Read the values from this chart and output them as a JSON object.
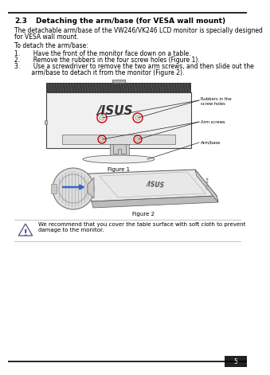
{
  "page_bg": "#ffffff",
  "border_color": "#000000",
  "page_num": "5",
  "header_num": "2.3",
  "header_tab": "        Detaching the arm/base (for VESA wall mount)",
  "para1": "The detachable arm/base of the VW246/VK246 LCD monitor is specially designed",
  "para1b": "for VESA wall mount.",
  "para2": "To detach the arm/base:",
  "item1": "1.       Have the front of the monitor face down on a table.",
  "item2": "2.       Remove the rubbers in the four screw holes (Figure 1).",
  "item3a": "3.       Use a screwdriver to remove the two arm screws, and then slide out the",
  "item3b": "         arm/base to detach it from the monitor (Figure 2).",
  "figure1_label": "Figure 1",
  "figure2_label": "Figure 2",
  "annotation1": "Rubbers in the\nscrew holes",
  "annotation2": "Arm screws",
  "annotation3": "Arm/base",
  "note_text1": "We recommend that you cover the table surface with soft cloth to prevent",
  "note_text2": "damage to the monitor.",
  "text_color": "#000000",
  "screw_circle_color": "#cc0000",
  "blue_arrow_color": "#3366cc"
}
